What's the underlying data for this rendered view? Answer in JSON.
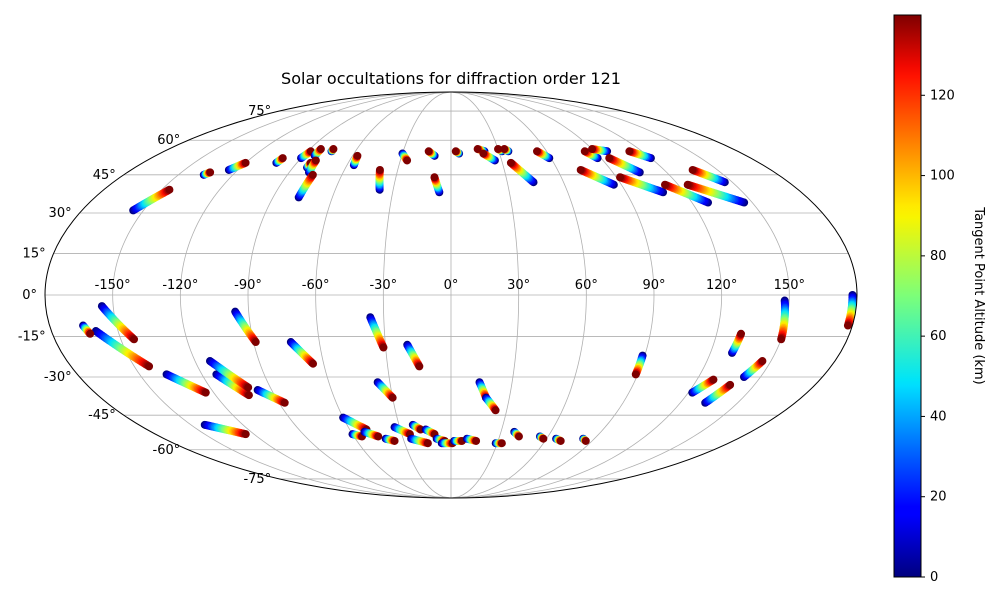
{
  "chart_data": {
    "type": "scatter",
    "projection": "mollweide",
    "title": "Solar occultations for diffraction order 121",
    "grid": true,
    "colormap": "jet",
    "colorbar": {
      "label": "Tangent Point Altitude (km)",
      "min": 0,
      "max": 140,
      "ticks": [
        0,
        20,
        40,
        60,
        80,
        100,
        120
      ],
      "tick_labels": [
        "0",
        "20",
        "40",
        "60",
        "80",
        "100",
        "120"
      ]
    },
    "xticks": [
      -150,
      -120,
      -90,
      -60,
      -30,
      0,
      30,
      60,
      90,
      120,
      150
    ],
    "xtick_labels": [
      "-150°",
      "-120°",
      "-90°",
      "-60°",
      "-30°",
      "0°",
      "30°",
      "60°",
      "90°",
      "120°",
      "150°"
    ],
    "yticks": [
      -75,
      -60,
      -45,
      -30,
      -15,
      0,
      15,
      30,
      45,
      60,
      75
    ],
    "ytick_labels": [
      "-75°",
      "-60°",
      "-45°",
      "-30°",
      "-15°",
      "0°",
      "15°",
      "30°",
      "45°",
      "60°",
      "75°"
    ],
    "altitude_range_km": [
      0,
      140
    ],
    "occultations": [
      {
        "start": [
          -155,
          31
        ],
        "end": [
          -146,
          39
        ]
      },
      {
        "start": [
          -136,
          45
        ],
        "end": [
          -134,
          46
        ]
      },
      {
        "start": [
          -125,
          47
        ],
        "end": [
          -120,
          50
        ]
      },
      {
        "start": [
          -102,
          50
        ],
        "end": [
          -101,
          52
        ]
      },
      {
        "start": [
          -90,
          52
        ],
        "end": [
          -88,
          55
        ]
      },
      {
        "start": [
          -83,
          53
        ],
        "end": [
          -83,
          56
        ]
      },
      {
        "start": [
          -82,
          48
        ],
        "end": [
          -82,
          50
        ]
      },
      {
        "start": [
          -79,
          46
        ],
        "end": [
          -80,
          51
        ]
      },
      {
        "start": [
          -77,
          36
        ],
        "end": [
          -76,
          45
        ]
      },
      {
        "start": [
          -75,
          55
        ],
        "end": [
          -75,
          56
        ]
      },
      {
        "start": [
          -56,
          49
        ],
        "end": [
          -57,
          53
        ]
      },
      {
        "start": [
          -37,
          39
        ],
        "end": [
          -40,
          47
        ]
      },
      {
        "start": [
          -30,
          54
        ],
        "end": [
          -26,
          51
        ]
      },
      {
        "start": [
          -10,
          53
        ],
        "end": [
          -14,
          55
        ]
      },
      {
        "start": [
          -6,
          38
        ],
        "end": [
          -9,
          44
        ]
      },
      {
        "start": [
          5,
          54
        ],
        "end": [
          3,
          55
        ]
      },
      {
        "start": [
          21,
          55
        ],
        "end": [
          17,
          56
        ]
      },
      {
        "start": [
          26,
          51
        ],
        "end": [
          20,
          54
        ]
      },
      {
        "start": [
          32,
          55
        ],
        "end": [
          30,
          56
        ]
      },
      {
        "start": [
          36,
          55
        ],
        "end": [
          34,
          56
        ]
      },
      {
        "start": [
          44,
          42
        ],
        "end": [
          35,
          50
        ]
      },
      {
        "start": [
          59,
          52
        ],
        "end": [
          54,
          55
        ]
      },
      {
        "start": [
          86,
          41
        ],
        "end": [
          73,
          47
        ]
      },
      {
        "start": [
          88,
          52
        ],
        "end": [
          84,
          55
        ]
      },
      {
        "start": [
          98,
          55
        ],
        "end": [
          90,
          56
        ]
      },
      {
        "start": [
          105,
          46
        ],
        "end": [
          95,
          52
        ]
      },
      {
        "start": [
          109,
          38
        ],
        "end": [
          92,
          44
        ]
      },
      {
        "start": [
          128,
          34
        ],
        "end": [
          113,
          41
        ]
      },
      {
        "start": [
          120,
          52
        ],
        "end": [
          112,
          55
        ]
      },
      {
        "start": [
          146,
          34
        ],
        "end": [
          125,
          41
        ]
      },
      {
        "start": [
          146,
          42
        ],
        "end": [
          136,
          47
        ]
      },
      {
        "start": [
          -155,
          -4
        ],
        "end": [
          -144,
          -16
        ]
      },
      {
        "start": [
          -160,
          -13
        ],
        "end": [
          -143,
          -26
        ]
      },
      {
        "start": [
          -165,
          -11
        ],
        "end": [
          -163,
          -14
        ]
      },
      {
        "start": [
          -137,
          -29
        ],
        "end": [
          -124,
          -36
        ]
      },
      {
        "start": [
          -113,
          -29
        ],
        "end": [
          -103,
          -37
        ]
      },
      {
        "start": [
          -113,
          -24
        ],
        "end": [
          -101,
          -34
        ]
      },
      {
        "start": [
          -97,
          -35
        ],
        "end": [
          -87,
          -40
        ]
      },
      {
        "start": [
          -96,
          -6
        ],
        "end": [
          -89,
          -17
        ]
      },
      {
        "start": [
          -73,
          -17
        ],
        "end": [
          -65,
          -25
        ]
      },
      {
        "start": [
          -36,
          -8
        ],
        "end": [
          -31,
          -19
        ]
      },
      {
        "start": [
          -36,
          -32
        ],
        "end": [
          -30,
          -38
        ]
      },
      {
        "start": [
          -20,
          -18
        ],
        "end": [
          -15,
          -26
        ]
      },
      {
        "start": [
          -142,
          -49
        ],
        "end": [
          -125,
          -53
        ]
      },
      {
        "start": [
          -60,
          -46
        ],
        "end": [
          -50,
          -51
        ]
      },
      {
        "start": [
          -60,
          -53
        ],
        "end": [
          -55,
          -54
        ]
      },
      {
        "start": [
          -52,
          -52
        ],
        "end": [
          -45,
          -54
        ]
      },
      {
        "start": [
          -41,
          -55
        ],
        "end": [
          -36,
          -56
        ]
      },
      {
        "start": [
          -33,
          -50
        ],
        "end": [
          -25,
          -53
        ]
      },
      {
        "start": [
          -22,
          -49
        ],
        "end": [
          -18,
          -51
        ]
      },
      {
        "start": [
          -25,
          -55
        ],
        "end": [
          -15,
          -57
        ]
      },
      {
        "start": [
          -15,
          -51
        ],
        "end": [
          -10,
          -53
        ]
      },
      {
        "start": [
          -9,
          -55
        ],
        "end": [
          -4,
          -56
        ]
      },
      {
        "start": [
          -6,
          -57
        ],
        "end": [
          1,
          -57
        ]
      },
      {
        "start": [
          2,
          -56
        ],
        "end": [
          7,
          -56
        ]
      },
      {
        "start": [
          10,
          -55
        ],
        "end": [
          16,
          -56
        ]
      },
      {
        "start": [
          14,
          -32
        ],
        "end": [
          18,
          -38
        ]
      },
      {
        "start": [
          18,
          -38
        ],
        "end": [
          24,
          -43
        ]
      },
      {
        "start": [
          29,
          -57
        ],
        "end": [
          33,
          -57
        ]
      },
      {
        "start": [
          38,
          -52
        ],
        "end": [
          42,
          -54
        ]
      },
      {
        "start": [
          55,
          -54
        ],
        "end": [
          58,
          -55
        ]
      },
      {
        "start": [
          66,
          -55
        ],
        "end": [
          70,
          -56
        ]
      },
      {
        "start": [
          89,
          -22
        ],
        "end": [
          89,
          -29
        ]
      },
      {
        "start": [
          83,
          -55
        ],
        "end": [
          86,
          -56
        ]
      },
      {
        "start": [
          122,
          -36
        ],
        "end": [
          128,
          -31
        ]
      },
      {
        "start": [
          130,
          -21
        ],
        "end": [
          131,
          -14
        ]
      },
      {
        "start": [
          133,
          -40
        ],
        "end": [
          138,
          -33
        ]
      },
      {
        "start": [
          142,
          -30
        ],
        "end": [
          146,
          -24
        ]
      },
      {
        "start": [
          148,
          -2
        ],
        "end": [
          150,
          -16
        ]
      },
      {
        "start": [
          178,
          0
        ],
        "end": [
          178,
          -11
        ]
      }
    ]
  }
}
